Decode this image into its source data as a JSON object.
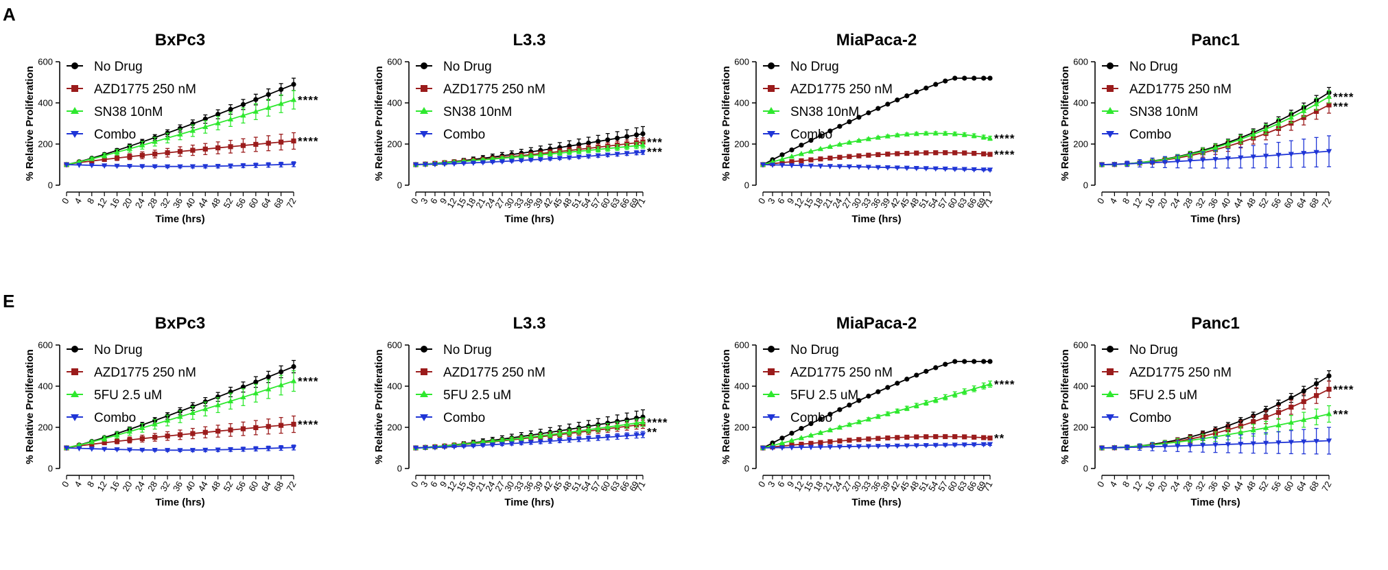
{
  "panels": [
    {
      "letter": "A",
      "row": 0
    },
    {
      "letter": "E",
      "row": 1
    }
  ],
  "colors": {
    "no_drug": "#000000",
    "azd": "#9b1c1c",
    "treat": "#2ee82e",
    "combo": "#1f35d6"
  },
  "chart_data": [
    {
      "type": "line",
      "title": "BxPc3",
      "xlabel": "Time (hrs)",
      "ylabel": "% Relative Proliferation",
      "row": 0,
      "col": 0,
      "ylim": [
        0,
        600
      ],
      "yticks": [
        0,
        200,
        400,
        600
      ],
      "xlim": [
        0,
        72
      ],
      "step": 4,
      "xticks": [
        "0",
        "4",
        "8",
        "12",
        "16",
        "20",
        "24",
        "28",
        "32",
        "36",
        "40",
        "44",
        "48",
        "52",
        "56",
        "60",
        "64",
        "68",
        "72"
      ],
      "series": [
        {
          "name": "No Drug",
          "marker": "circle",
          "start": 100,
          "end": 490,
          "curve": 1.15,
          "err": 30
        },
        {
          "name": "AZD1775 250 nM",
          "marker": "square",
          "start": 100,
          "end": 215,
          "curve": 0.85,
          "err": 40
        },
        {
          "name": "SN38 10nM",
          "marker": "triangle-up",
          "start": 100,
          "end": 415,
          "curve": 1.1,
          "err": 45
        },
        {
          "name": "Combo",
          "marker": "triangle-down",
          "start": 100,
          "end": 102,
          "curve": 1.0,
          "err": 12,
          "dip": 10
        }
      ],
      "significance": [
        {
          "series": 2,
          "label": "****"
        },
        {
          "series": 1,
          "label": "****"
        }
      ]
    },
    {
      "type": "line",
      "title": "L3.3",
      "xlabel": "Time (hrs)",
      "ylabel": "% Relative Proliferation",
      "row": 0,
      "col": 1,
      "ylim": [
        0,
        600
      ],
      "yticks": [
        0,
        200,
        400,
        600
      ],
      "xlim": [
        0,
        71
      ],
      "step": 3,
      "xticks": [
        "0",
        "3",
        "6",
        "9",
        "12",
        "15",
        "18",
        "21",
        "24",
        "27",
        "30",
        "33",
        "36",
        "39",
        "42",
        "45",
        "48",
        "51",
        "54",
        "57",
        "60",
        "63",
        "66",
        "69",
        "71"
      ],
      "series": [
        {
          "name": "No Drug",
          "marker": "circle",
          "start": 100,
          "end": 250,
          "curve": 1.3,
          "err": 35
        },
        {
          "name": "AZD1775 250 nM",
          "marker": "square",
          "start": 100,
          "end": 210,
          "curve": 1.2,
          "err": 20
        },
        {
          "name": "SN38 10nM",
          "marker": "triangle-up",
          "start": 100,
          "end": 195,
          "curve": 1.15,
          "err": 15
        },
        {
          "name": "Combo",
          "marker": "triangle-down",
          "start": 100,
          "end": 160,
          "curve": 1.4,
          "err": 10
        }
      ],
      "significance": [
        {
          "series": 1,
          "label": "***"
        },
        {
          "series": 2,
          "label": "***"
        }
      ]
    },
    {
      "type": "line",
      "title": "MiaPaca-2",
      "xlabel": "Time (hrs)",
      "ylabel": "% Relative Proliferation",
      "row": 0,
      "col": 2,
      "ylim": [
        0,
        600
      ],
      "yticks": [
        0,
        200,
        400,
        600
      ],
      "xlim": [
        0,
        71
      ],
      "step": 3,
      "xticks": [
        "0",
        "3",
        "6",
        "9",
        "12",
        "15",
        "18",
        "21",
        "24",
        "27",
        "30",
        "33",
        "36",
        "39",
        "42",
        "45",
        "48",
        "51",
        "54",
        "57",
        "60",
        "63",
        "66",
        "69",
        "71"
      ],
      "series": [
        {
          "name": "No Drug",
          "marker": "circle",
          "start": 100,
          "end": 520,
          "shape": "plateau",
          "plateauAt": 60,
          "err": 6
        },
        {
          "name": "AZD1775 250 nM",
          "marker": "square",
          "start": 100,
          "end": 150,
          "shape": "hump",
          "peak": 158,
          "peakAt": 57,
          "err": 8
        },
        {
          "name": "SN38 10nM",
          "marker": "triangle-up",
          "start": 100,
          "end": 228,
          "shape": "hump",
          "peak": 252,
          "peakAt": 54,
          "err": 10
        },
        {
          "name": "Combo",
          "marker": "triangle-down",
          "start": 100,
          "end": 75,
          "curve": 1.0,
          "err": 5
        }
      ],
      "significance": [
        {
          "series": 2,
          "label": "****"
        },
        {
          "series": 1,
          "label": "****"
        }
      ]
    },
    {
      "type": "line",
      "title": "Panc1",
      "xlabel": "Time (hrs)",
      "ylabel": "% Relative Proliferation",
      "row": 0,
      "col": 3,
      "ylim": [
        0,
        600
      ],
      "yticks": [
        0,
        200,
        400,
        600
      ],
      "xlim": [
        0,
        72
      ],
      "step": 4,
      "xticks": [
        "0",
        "4",
        "8",
        "12",
        "16",
        "20",
        "24",
        "28",
        "32",
        "36",
        "40",
        "44",
        "48",
        "52",
        "56",
        "60",
        "64",
        "68",
        "72"
      ],
      "series": [
        {
          "name": "No Drug",
          "marker": "circle",
          "start": 100,
          "end": 450,
          "curve": 2.0,
          "err": 25
        },
        {
          "name": "AZD1775 250 nM",
          "marker": "square",
          "start": 100,
          "end": 390,
          "curve": 2.0,
          "err": 40
        },
        {
          "name": "SN38 10nM",
          "marker": "triangle-up",
          "start": 100,
          "end": 430,
          "curve": 2.0,
          "err": 30
        },
        {
          "name": "Combo",
          "marker": "triangle-down",
          "start": 100,
          "end": 165,
          "curve": 1.3,
          "err": 75
        }
      ],
      "significance": [
        {
          "series": 2,
          "label": "****"
        },
        {
          "series": 1,
          "label": "***"
        }
      ]
    },
    {
      "type": "line",
      "title": "BxPc3",
      "xlabel": "Time (hrs)",
      "ylabel": "% Relative Proliferation",
      "row": 1,
      "col": 0,
      "ylim": [
        0,
        600
      ],
      "yticks": [
        0,
        200,
        400,
        600
      ],
      "xlim": [
        0,
        72
      ],
      "step": 4,
      "xticks": [
        "0",
        "4",
        "8",
        "12",
        "16",
        "20",
        "24",
        "28",
        "32",
        "36",
        "40",
        "44",
        "48",
        "52",
        "56",
        "60",
        "64",
        "68",
        "72"
      ],
      "series": [
        {
          "name": "No Drug",
          "marker": "circle",
          "start": 100,
          "end": 495,
          "curve": 1.15,
          "err": 30
        },
        {
          "name": "AZD1775 250 nM",
          "marker": "square",
          "start": 100,
          "end": 215,
          "curve": 0.85,
          "err": 40
        },
        {
          "name": "5FU 2.5 uM",
          "marker": "triangle-up",
          "start": 100,
          "end": 425,
          "curve": 1.1,
          "err": 50
        },
        {
          "name": "Combo",
          "marker": "triangle-down",
          "start": 100,
          "end": 102,
          "curve": 1.0,
          "err": 12,
          "dip": 12
        }
      ],
      "significance": [
        {
          "series": 2,
          "label": "****"
        },
        {
          "series": 1,
          "label": "****"
        }
      ]
    },
    {
      "type": "line",
      "title": "L3.3",
      "xlabel": "Time (hrs)",
      "ylabel": "% Relative Proliferation",
      "row": 1,
      "col": 1,
      "ylim": [
        0,
        600
      ],
      "yticks": [
        0,
        200,
        400,
        600
      ],
      "xlim": [
        0,
        71
      ],
      "step": 3,
      "xticks": [
        "0",
        "3",
        "6",
        "9",
        "12",
        "15",
        "18",
        "21",
        "24",
        "27",
        "30",
        "33",
        "36",
        "39",
        "42",
        "45",
        "48",
        "51",
        "54",
        "57",
        "60",
        "63",
        "66",
        "69",
        "71"
      ],
      "series": [
        {
          "name": "No Drug",
          "marker": "circle",
          "start": 100,
          "end": 250,
          "curve": 1.3,
          "err": 35
        },
        {
          "name": "AZD1775 250 nM",
          "marker": "square",
          "start": 100,
          "end": 215,
          "curve": 1.25,
          "err": 20
        },
        {
          "name": "5FU 2.5 uM",
          "marker": "triangle-up",
          "start": 100,
          "end": 225,
          "curve": 1.25,
          "err": 20
        },
        {
          "name": "Combo",
          "marker": "triangle-down",
          "start": 100,
          "end": 165,
          "curve": 1.3,
          "err": 15
        }
      ],
      "significance": [
        {
          "series": 2,
          "label": "****"
        },
        {
          "series": 1,
          "label": "**"
        }
      ]
    },
    {
      "type": "line",
      "title": "MiaPaca-2",
      "xlabel": "Time (hrs)",
      "ylabel": "% Relative Proliferation",
      "row": 1,
      "col": 2,
      "ylim": [
        0,
        600
      ],
      "yticks": [
        0,
        200,
        400,
        600
      ],
      "xlim": [
        0,
        71
      ],
      "step": 3,
      "xticks": [
        "0",
        "3",
        "6",
        "9",
        "12",
        "15",
        "18",
        "21",
        "24",
        "27",
        "30",
        "33",
        "36",
        "39",
        "42",
        "45",
        "48",
        "51",
        "54",
        "57",
        "60",
        "63",
        "66",
        "69",
        "71"
      ],
      "series": [
        {
          "name": "No Drug",
          "marker": "circle",
          "start": 100,
          "end": 520,
          "shape": "plateau",
          "plateauAt": 60,
          "err": 6
        },
        {
          "name": "AZD1775 250 nM",
          "marker": "square",
          "start": 100,
          "end": 148,
          "shape": "hump",
          "peak": 155,
          "peakAt": 57,
          "err": 8
        },
        {
          "name": "5FU 2.5 uM",
          "marker": "triangle-up",
          "start": 100,
          "end": 410,
          "curve": 1.05,
          "err": 15
        },
        {
          "name": "Combo",
          "marker": "triangle-down",
          "start": 100,
          "end": 118,
          "curve": 1.0,
          "err": 6
        }
      ],
      "significance": [
        {
          "series": 2,
          "label": "****"
        },
        {
          "series": 1,
          "label": "**"
        }
      ]
    },
    {
      "type": "line",
      "title": "Panc1",
      "xlabel": "Time (hrs)",
      "ylabel": "% Relative Proliferation",
      "row": 1,
      "col": 3,
      "ylim": [
        0,
        600
      ],
      "yticks": [
        0,
        200,
        400,
        600
      ],
      "xlim": [
        0,
        72
      ],
      "step": 4,
      "xticks": [
        "0",
        "4",
        "8",
        "12",
        "16",
        "20",
        "24",
        "28",
        "32",
        "36",
        "40",
        "44",
        "48",
        "52",
        "56",
        "60",
        "64",
        "68",
        "72"
      ],
      "series": [
        {
          "name": "No Drug",
          "marker": "circle",
          "start": 100,
          "end": 450,
          "curve": 2.0,
          "err": 25
        },
        {
          "name": "AZD1775 250 nM",
          "marker": "square",
          "start": 100,
          "end": 385,
          "curve": 2.0,
          "err": 40
        },
        {
          "name": "5FU 2.5 uM",
          "marker": "triangle-up",
          "start": 100,
          "end": 265,
          "curve": 1.6,
          "err": 40
        },
        {
          "name": "Combo",
          "marker": "triangle-down",
          "start": 100,
          "end": 135,
          "curve": 1.2,
          "err": 65
        }
      ],
      "significance": [
        {
          "series": 1,
          "label": "****"
        },
        {
          "series": 2,
          "label": "***"
        }
      ]
    }
  ]
}
